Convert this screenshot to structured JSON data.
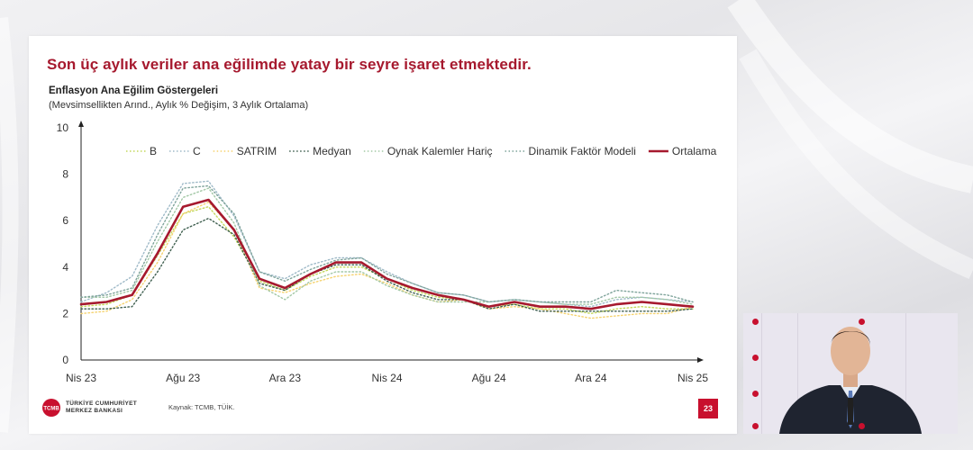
{
  "slide": {
    "headline": "Son üç aylık veriler ana eğilimde yatay bir seyre işaret etmektedir.",
    "source": "Kaynak: TCMB, TÜİK.",
    "page_number": "23",
    "logo_line1": "TÜRKİYE CUMHURİYET",
    "logo_line2": "MERKEZ BANKASI",
    "logo_mark": "TCMB",
    "colors": {
      "headline": "#a6192e",
      "accent": "#c8102e"
    }
  },
  "chart_data": {
    "type": "line",
    "title": "Enflasyon Ana Eğilim Göstergeleri",
    "subtitle": "(Mevsimsellikten Arınd., Aylık % Değişim, 3 Aylık Ortalama)",
    "xlabel": "",
    "ylabel": "",
    "ylim": [
      0,
      10
    ],
    "yticks": [
      "0",
      "2",
      "4",
      "6",
      "8",
      "10"
    ],
    "x": [
      "2023-04",
      "2023-05",
      "2023-06",
      "2023-07",
      "2023-08",
      "2023-09",
      "2023-10",
      "2023-11",
      "2023-12",
      "2024-01",
      "2024-02",
      "2024-03",
      "2024-04",
      "2024-05",
      "2024-06",
      "2024-07",
      "2024-08",
      "2024-09",
      "2024-10",
      "2024-11",
      "2024-12",
      "2025-01",
      "2025-02",
      "2025-03",
      "2025-04"
    ],
    "xticks": [
      {
        "x": "2023-04",
        "label": "Nis 23"
      },
      {
        "x": "2023-08",
        "label": "Ağu 23"
      },
      {
        "x": "2023-12",
        "label": "Ara 23"
      },
      {
        "x": "2024-04",
        "label": "Nis 24"
      },
      {
        "x": "2024-08",
        "label": "Ağu 24"
      },
      {
        "x": "2024-12",
        "label": "Ara 24"
      },
      {
        "x": "2025-04",
        "label": "Nis 25"
      }
    ],
    "grid": false,
    "legend_position": "top",
    "series": [
      {
        "name": "B",
        "color": "#c4d85c",
        "style": "dotted",
        "values": [
          2.3,
          2.4,
          2.8,
          4.5,
          6.3,
          6.6,
          5.3,
          3.4,
          3.0,
          3.6,
          4.0,
          4.0,
          3.5,
          3.0,
          2.7,
          2.6,
          2.3,
          2.4,
          2.2,
          2.2,
          2.0,
          2.2,
          2.3,
          2.2,
          2.2
        ]
      },
      {
        "name": "C",
        "color": "#9fbac8",
        "style": "dotted",
        "values": [
          2.5,
          2.9,
          3.6,
          5.8,
          7.6,
          7.7,
          6.2,
          3.8,
          3.5,
          4.1,
          4.4,
          4.4,
          3.8,
          3.3,
          2.9,
          2.8,
          2.5,
          2.6,
          2.5,
          2.4,
          2.3,
          2.6,
          2.7,
          2.6,
          2.5
        ]
      },
      {
        "name": "SATRIM",
        "color": "#f5d26e",
        "style": "dotted",
        "values": [
          2.0,
          2.1,
          2.6,
          4.2,
          6.3,
          6.8,
          5.6,
          3.1,
          2.9,
          3.3,
          3.6,
          3.7,
          3.3,
          2.8,
          2.5,
          2.6,
          2.2,
          2.3,
          2.2,
          2.0,
          1.8,
          1.9,
          2.0,
          2.0,
          2.3
        ]
      },
      {
        "name": "Medyan",
        "color": "#3f5f4f",
        "style": "dotted",
        "values": [
          2.2,
          2.2,
          2.3,
          3.8,
          5.6,
          6.1,
          5.4,
          3.3,
          3.0,
          3.7,
          4.1,
          4.1,
          3.4,
          2.9,
          2.6,
          2.6,
          2.2,
          2.4,
          2.1,
          2.1,
          2.1,
          2.1,
          2.1,
          2.1,
          2.2
        ]
      },
      {
        "name": "Oynak Kalemler Hariç",
        "color": "#a3c8a6",
        "style": "dotted",
        "values": [
          2.7,
          2.7,
          3.0,
          5.1,
          7.0,
          7.4,
          5.9,
          3.2,
          2.6,
          3.4,
          3.8,
          3.8,
          3.2,
          2.8,
          2.5,
          2.5,
          2.5,
          2.6,
          2.5,
          2.4,
          2.4,
          2.7,
          2.7,
          2.6,
          2.4
        ]
      },
      {
        "name": "Dinamik Faktör Modeli",
        "color": "#7ea39a",
        "style": "dotted",
        "values": [
          2.7,
          2.8,
          3.1,
          5.4,
          7.4,
          7.5,
          6.3,
          3.8,
          3.4,
          3.9,
          4.3,
          4.4,
          3.7,
          3.3,
          2.9,
          2.8,
          2.5,
          2.6,
          2.5,
          2.5,
          2.5,
          3.0,
          2.9,
          2.8,
          2.5
        ]
      },
      {
        "name": "Ortalama",
        "color": "#a6192e",
        "style": "solid",
        "values": [
          2.4,
          2.5,
          2.8,
          4.6,
          6.6,
          6.9,
          5.6,
          3.5,
          3.1,
          3.7,
          4.2,
          4.2,
          3.5,
          3.1,
          2.8,
          2.6,
          2.3,
          2.5,
          2.3,
          2.3,
          2.2,
          2.4,
          2.5,
          2.4,
          2.3
        ]
      }
    ]
  }
}
